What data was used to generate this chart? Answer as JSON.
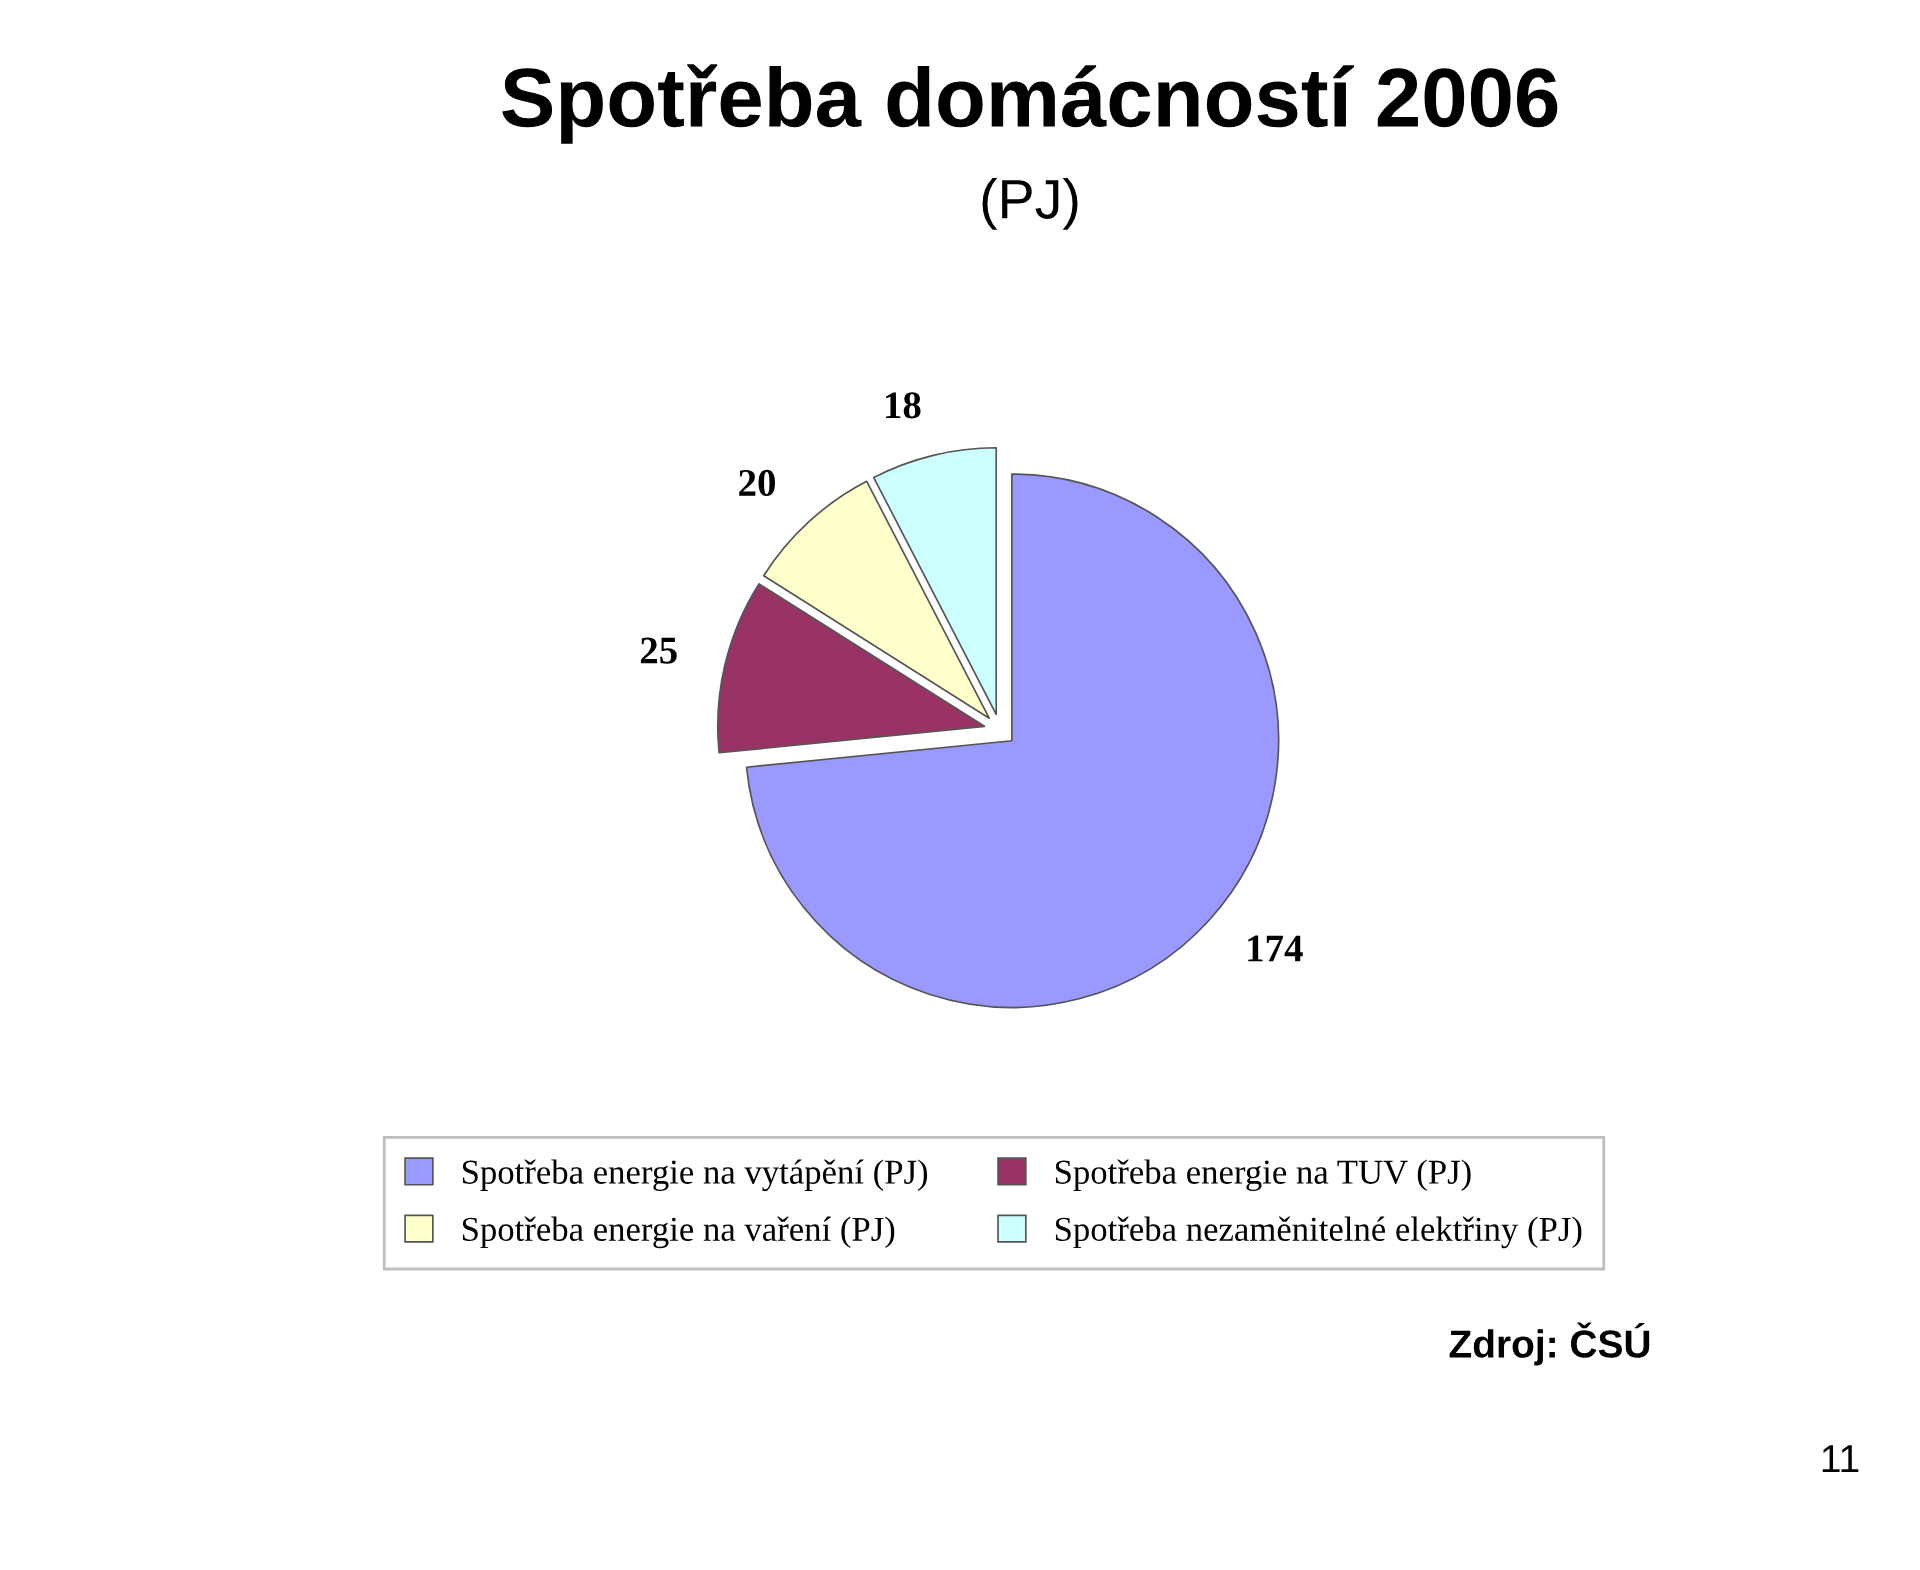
{
  "chart_data": {
    "type": "pie",
    "title": "Spotřeba domácností 2006",
    "subtitle": "(PJ)",
    "categories": [
      "Spotřeba energie na vytápění (PJ)",
      "Spotřeba energie na TUV (PJ)",
      "Spotřeba energie na vaření (PJ)",
      "Spotřeba nezaměnitelné elektřiny (PJ)"
    ],
    "values": [
      174,
      25,
      20,
      18
    ],
    "colors": [
      "#9999ff",
      "#993366",
      "#ffffcc",
      "#ccffff"
    ],
    "data_labels": true,
    "legend": "bottom",
    "annotations": [
      "Zdroj: ČSÚ",
      "11"
    ]
  }
}
